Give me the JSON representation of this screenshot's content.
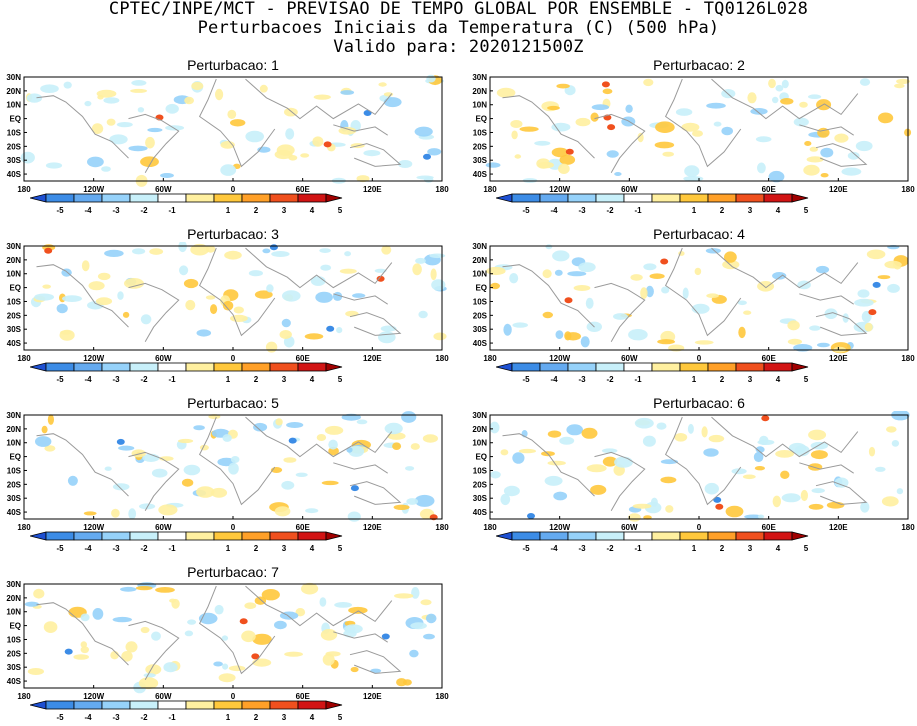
{
  "header": {
    "line1": "CPTEC/INPE/MCT - PREVISAO DE TEMPO GLOBAL POR ENSEMBLE - TQ0126L028",
    "line2": "Perturbacoes Iniciais da Temperatura (C) (500 hPa)",
    "line3": "Valido para: 2020121500Z"
  },
  "panels": [
    {
      "title": "Perturbacao: 1"
    },
    {
      "title": "Perturbacao: 2"
    },
    {
      "title": "Perturbacao: 3"
    },
    {
      "title": "Perturbacao: 4"
    },
    {
      "title": "Perturbacao: 5"
    },
    {
      "title": "Perturbacao: 6"
    },
    {
      "title": "Perturbacao: 7"
    }
  ],
  "axes": {
    "lat_labels": [
      "30N",
      "20N",
      "10N",
      "EQ",
      "10S",
      "20S",
      "30S",
      "40S"
    ],
    "lon_labels": [
      "180",
      "120W",
      "60W",
      "0",
      "60E",
      "120E",
      "180"
    ]
  },
  "colorbar": {
    "ticks": [
      "-5",
      "-4",
      "-3",
      "-2",
      "-1",
      "1",
      "2",
      "3",
      "4",
      "5"
    ],
    "colors": [
      "#1e50d2",
      "#3c8ce6",
      "#64aaf0",
      "#96d2fa",
      "#c8f0fa",
      "#ffffff",
      "#fff0a0",
      "#ffc83c",
      "#ffa028",
      "#f0501e",
      "#d21414",
      "#a00000"
    ]
  }
}
